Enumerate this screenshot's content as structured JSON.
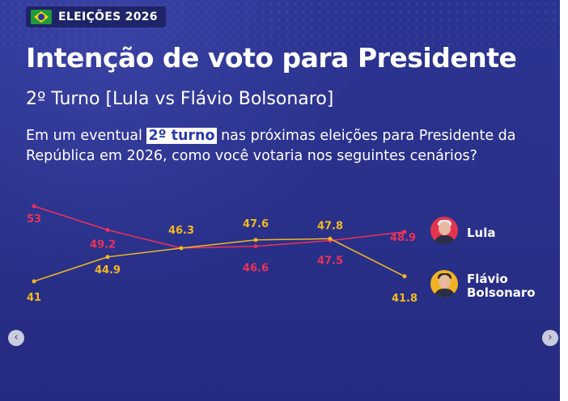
{
  "tag": {
    "label": "ELEIÇÕES 2026",
    "flag_icon": "brazil-flag-icon"
  },
  "title": "Intenção de voto para Presidente",
  "subtitle": "2º Turno [Lula vs Flávio Bolsonaro]",
  "question": {
    "before": "Em um eventual ",
    "highlight": "2º turno",
    "after": " nas próximas eleições para Presidente da República em 2026, como você votaria nos seguintes cenários?"
  },
  "chart_data": {
    "type": "line",
    "title": "",
    "xlabel": "",
    "ylabel": "",
    "grid": false,
    "legend": "right",
    "ylim": [
      40,
      54
    ],
    "series": [
      {
        "name": "Lula",
        "color": "#e8335a",
        "values": [
          53,
          49.2,
          46.3,
          46.6,
          47.5,
          48.9
        ]
      },
      {
        "name": "Flávio Bolsonaro",
        "color": "#f2b824",
        "values": [
          41,
          44.9,
          46.3,
          47.6,
          47.8,
          41.8
        ]
      }
    ],
    "data_labels": [
      {
        "series": 0,
        "index": 0,
        "text": "53"
      },
      {
        "series": 0,
        "index": 1,
        "text": "49.2"
      },
      {
        "series": 0,
        "index": 3,
        "text": "46.6"
      },
      {
        "series": 0,
        "index": 4,
        "text": "47.5"
      },
      {
        "series": 0,
        "index": 5,
        "text": "48.9"
      },
      {
        "series": 1,
        "index": 0,
        "text": "41"
      },
      {
        "series": 1,
        "index": 1,
        "text": "44.9"
      },
      {
        "series": 1,
        "index": 2,
        "text": "46.3"
      },
      {
        "series": 1,
        "index": 3,
        "text": "47.6"
      },
      {
        "series": 1,
        "index": 4,
        "text": "47.8"
      },
      {
        "series": 1,
        "index": 5,
        "text": "41.8"
      }
    ]
  },
  "legend": {
    "lula": {
      "label": "Lula",
      "avatar_icon": "lula-avatar-icon"
    },
    "flavio": {
      "line1": "Flávio",
      "line2": "Bolsonaro",
      "avatar_icon": "flavio-avatar-icon"
    }
  },
  "nav": {
    "prev_icon": "chevron-left-icon",
    "next_icon": "chevron-right-icon",
    "prev_glyph": "‹",
    "next_glyph": "›"
  }
}
